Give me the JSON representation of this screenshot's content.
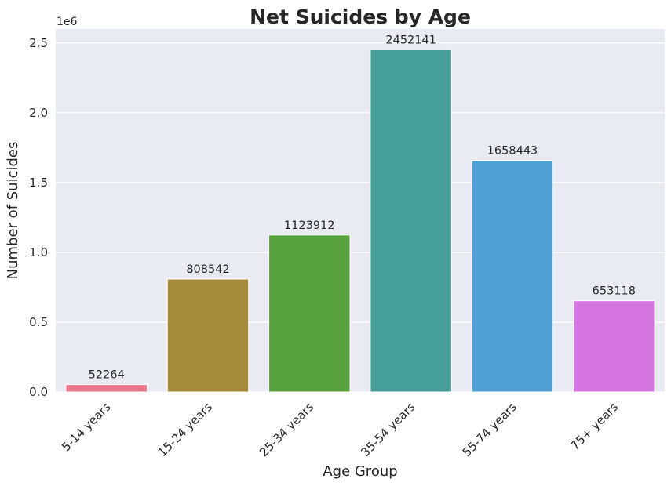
{
  "chart_data": {
    "type": "bar",
    "title": "Net Suicides by Age",
    "xlabel": "Age Group",
    "ylabel": "Number of Suicides",
    "y_offset_label": "1e6",
    "categories": [
      "5-14 years",
      "15-24 years",
      "25-34 years",
      "35-54 years",
      "55-74 years",
      "75+ years"
    ],
    "values": [
      52264,
      808542,
      1123912,
      2452141,
      1658443,
      653118
    ],
    "data_labels": [
      "52264",
      "808542",
      "1123912",
      "2452141",
      "1658443",
      "653118"
    ],
    "colors": [
      "#e8758a",
      "#a78b3d",
      "#57a23f",
      "#469e97",
      "#529fd6",
      "#d575e0"
    ],
    "y_ticks": [
      0,
      0.5,
      1.0,
      1.5,
      2.0,
      2.5
    ],
    "y_tick_labels": [
      "0.0",
      "0.5",
      "1.0",
      "1.5",
      "2.0",
      "2.5"
    ],
    "y_scale": 1000000,
    "ylim": [
      0,
      2.6
    ],
    "grid": true,
    "background_color": "#eaeaf2",
    "grid_color": "#ffffff"
  }
}
